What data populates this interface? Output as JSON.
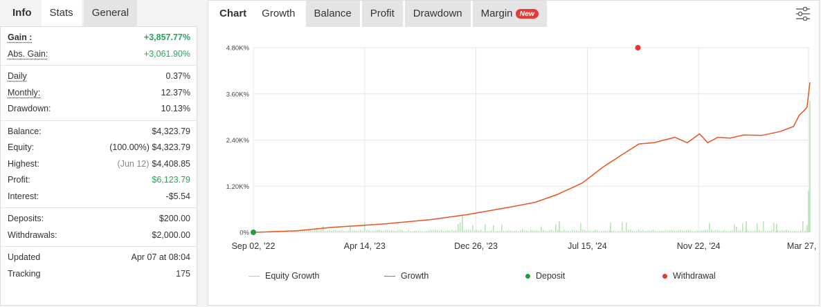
{
  "left_tabs": [
    {
      "label": "Info",
      "active": false
    },
    {
      "label": "Stats",
      "active": true
    },
    {
      "label": "General",
      "active": false
    }
  ],
  "stats": {
    "gain": {
      "label": "Gain :",
      "value": "+3,857.77%"
    },
    "abs_gain": {
      "label": "Abs. Gain:",
      "value": "+3,061.90%"
    },
    "daily": {
      "label": "Daily",
      "value": "0.37%"
    },
    "monthly": {
      "label": "Monthly:",
      "value": "12.37%"
    },
    "drawdown": {
      "label": "Drawdown:",
      "value": "10.13%"
    },
    "balance": {
      "label": "Balance:",
      "value": "$4,323.79"
    },
    "equity": {
      "label": "Equity:",
      "value": "(100.00%) $4,323.79"
    },
    "highest": {
      "label": "Highest:",
      "date": "(Jun 12)",
      "value": "$4,408.85"
    },
    "profit": {
      "label": "Profit:",
      "value": "$6,123.79"
    },
    "interest": {
      "label": "Interest:",
      "value": "-$5.54"
    },
    "deposits": {
      "label": "Deposits:",
      "value": "$200.00"
    },
    "withdrawals": {
      "label": "Withdrawals:",
      "value": "$2,000.00"
    },
    "updated": {
      "label": "Updated",
      "value": "Apr 07 at 08:04"
    },
    "tracking": {
      "label": "Tracking",
      "value": "175"
    }
  },
  "right_tabs": [
    {
      "label": "Chart",
      "active": false
    },
    {
      "label": "Growth",
      "active": true
    },
    {
      "label": "Balance",
      "active": false
    },
    {
      "label": "Profit",
      "active": false
    },
    {
      "label": "Drawdown",
      "active": false
    },
    {
      "label": "Margin",
      "active": false,
      "badge": "New"
    }
  ],
  "icons": {
    "settings": "sliders-icon"
  },
  "colors": {
    "growth": "#e8531f",
    "equity_growth": "#f5c518",
    "deposit": "#1e9e3e",
    "withdrawal": "#e53935",
    "bars": "#b9e5b9",
    "gain_green": "#26a65b"
  },
  "chart_data": {
    "type": "line",
    "x_ticks": [
      "Sep 02, '22",
      "Apr 14, '23",
      "Dec 26, '23",
      "Jul 15, '24",
      "Nov 22, '24",
      "Mar 27, '25"
    ],
    "y_ticks": [
      "0%",
      "1.20K%",
      "2.40K%",
      "3.60K%",
      "4.80K%"
    ],
    "ylim": [
      0,
      4800
    ],
    "legend": [
      "Equity Growth",
      "Growth",
      "Deposit",
      "Withdrawal"
    ],
    "legend_position": "bottom",
    "grid": true,
    "series": [
      {
        "name": "Growth",
        "x": [
          "2022-09-02",
          "2022-11-15",
          "2023-01-15",
          "2023-04-14",
          "2023-07-01",
          "2023-09-01",
          "2023-11-15",
          "2023-12-26",
          "2024-02-01",
          "2024-03-15",
          "2024-04-20",
          "2024-05-20",
          "2024-06-20",
          "2024-07-15",
          "2024-08-20",
          "2024-09-10",
          "2024-10-01",
          "2024-10-15",
          "2024-11-01",
          "2024-11-22",
          "2024-12-15",
          "2025-01-15",
          "2025-02-15",
          "2025-03-10",
          "2025-03-20",
          "2025-03-27",
          "2025-04-02",
          "2025-04-07"
        ],
        "values": [
          0,
          40,
          130,
          220,
          330,
          460,
          660,
          780,
          980,
          1280,
          1700,
          2000,
          2300,
          2330,
          2470,
          2330,
          2560,
          2330,
          2470,
          2450,
          2530,
          2520,
          2620,
          2750,
          3050,
          3150,
          3250,
          3900
        ]
      },
      {
        "name": "Equity Growth",
        "x": [
          "2022-09-02",
          "2025-04-07"
        ],
        "values": [
          0,
          3900
        ]
      }
    ],
    "events": [
      {
        "name": "Deposit",
        "x": "2022-09-02",
        "y": 0
      },
      {
        "name": "Withdrawal",
        "x": "2024-06-18",
        "y": 4800
      }
    ]
  }
}
